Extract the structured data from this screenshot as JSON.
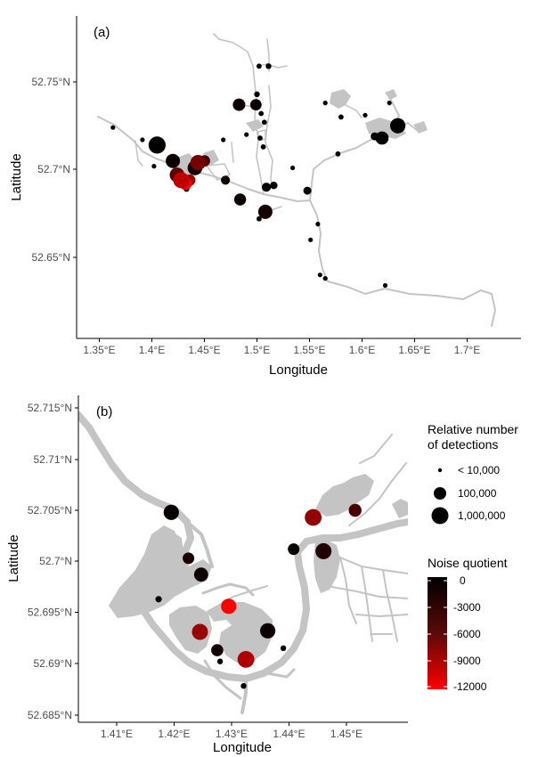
{
  "panel_a": {
    "label": "(a)",
    "xlabel": "Longitude",
    "ylabel": "Latitude",
    "xticks": [
      "1.35°E",
      "1.4°E",
      "1.45°E",
      "1.5°E",
      "1.55°E",
      "1.6°E",
      "1.65°E",
      "1.7°E"
    ],
    "yticks": [
      "52.65°N",
      "52.7°N",
      "52.75°N"
    ]
  },
  "panel_b": {
    "label": "(b)",
    "xlabel": "Longitude",
    "ylabel": "Latitude",
    "xticks": [
      "1.41°E",
      "1.42°E",
      "1.43°E",
      "1.44°E",
      "1.45°E"
    ],
    "yticks": [
      "52.685°N",
      "52.69°N",
      "52.695°N",
      "52.7°N",
      "52.705°N",
      "52.71°N",
      "52.715°N"
    ]
  },
  "legend": {
    "size_title_line1": "Relative number",
    "size_title_line2": "of detections",
    "size_items": [
      "< 10,000",
      "100,000",
      "1,000,000"
    ],
    "color_title": "Noise quotient",
    "color_ticks": [
      "0",
      "-3000",
      "-6000",
      "-9000",
      "-12000"
    ],
    "color_low": "#ff0000",
    "color_high": "#000000"
  },
  "colors": {
    "river": "#c4c4c4",
    "axis": "#000000",
    "tick_text": "#4d4d4d"
  },
  "chart_data": [
    {
      "type": "scatter",
      "panel": "a",
      "title": "",
      "xlabel": "Longitude",
      "ylabel": "Latitude",
      "xlim": [
        1.34,
        1.72
      ],
      "ylim": [
        52.615,
        52.785
      ],
      "size_encoding": "Relative number of detections",
      "color_encoding": "Noise quotient",
      "points": [
        {
          "lon": 1.405,
          "lat": 52.714,
          "size": 3,
          "nq": -200
        },
        {
          "lon": 1.42,
          "lat": 52.705,
          "size": 2.5,
          "nq": -500
        },
        {
          "lon": 1.424,
          "lat": 52.697,
          "size": 2.6,
          "nq": -4500
        },
        {
          "lon": 1.428,
          "lat": 52.694,
          "size": 2.8,
          "nq": -9000
        },
        {
          "lon": 1.432,
          "lat": 52.692,
          "size": 2.2,
          "nq": -11500
        },
        {
          "lon": 1.436,
          "lat": 52.694,
          "size": 2.0,
          "nq": -7500
        },
        {
          "lon": 1.441,
          "lat": 52.701,
          "size": 2.6,
          "nq": -800
        },
        {
          "lon": 1.444,
          "lat": 52.704,
          "size": 2.7,
          "nq": -5500
        },
        {
          "lon": 1.45,
          "lat": 52.705,
          "size": 2.0,
          "nq": -3500
        },
        {
          "lon": 1.433,
          "lat": 52.689,
          "size": 1.0,
          "nq": -200
        },
        {
          "lon": 1.402,
          "lat": 52.702,
          "size": 0.8,
          "nq": 0
        },
        {
          "lon": 1.391,
          "lat": 52.717,
          "size": 0.8,
          "nq": 0
        },
        {
          "lon": 1.363,
          "lat": 52.724,
          "size": 0.8,
          "nq": 0
        },
        {
          "lon": 1.47,
          "lat": 52.694,
          "size": 1.6,
          "nq": -800
        },
        {
          "lon": 1.484,
          "lat": 52.683,
          "size": 2.1,
          "nq": -500
        },
        {
          "lon": 1.508,
          "lat": 52.676,
          "size": 2.5,
          "nq": -1000
        },
        {
          "lon": 1.502,
          "lat": 52.672,
          "size": 0.9,
          "nq": 0
        },
        {
          "lon": 1.509,
          "lat": 52.69,
          "size": 1.6,
          "nq": -300
        },
        {
          "lon": 1.516,
          "lat": 52.691,
          "size": 1.3,
          "nq": -100
        },
        {
          "lon": 1.483,
          "lat": 52.737,
          "size": 2.2,
          "nq": -600
        },
        {
          "lon": 1.499,
          "lat": 52.737,
          "size": 2.0,
          "nq": -500
        },
        {
          "lon": 1.5,
          "lat": 52.743,
          "size": 1.0,
          "nq": -200
        },
        {
          "lon": 1.504,
          "lat": 52.732,
          "size": 0.9,
          "nq": 0
        },
        {
          "lon": 1.507,
          "lat": 52.727,
          "size": 0.9,
          "nq": 0
        },
        {
          "lon": 1.503,
          "lat": 52.718,
          "size": 0.9,
          "nq": 0
        },
        {
          "lon": 1.506,
          "lat": 52.713,
          "size": 0.9,
          "nq": 0
        },
        {
          "lon": 1.502,
          "lat": 52.759,
          "size": 0.9,
          "nq": 0
        },
        {
          "lon": 1.511,
          "lat": 52.759,
          "size": 1.0,
          "nq": 0
        },
        {
          "lon": 1.468,
          "lat": 52.717,
          "size": 0.8,
          "nq": 0
        },
        {
          "lon": 1.49,
          "lat": 52.72,
          "size": 0.8,
          "nq": 0
        },
        {
          "lon": 1.534,
          "lat": 52.701,
          "size": 0.8,
          "nq": 0
        },
        {
          "lon": 1.548,
          "lat": 52.688,
          "size": 1.4,
          "nq": -200
        },
        {
          "lon": 1.558,
          "lat": 52.669,
          "size": 0.8,
          "nq": 0
        },
        {
          "lon": 1.551,
          "lat": 52.66,
          "size": 0.8,
          "nq": 0
        },
        {
          "lon": 1.56,
          "lat": 52.64,
          "size": 0.8,
          "nq": 0
        },
        {
          "lon": 1.565,
          "lat": 52.638,
          "size": 0.8,
          "nq": 0
        },
        {
          "lon": 1.58,
          "lat": 52.73,
          "size": 0.9,
          "nq": 0
        },
        {
          "lon": 1.565,
          "lat": 52.738,
          "size": 0.8,
          "nq": 0
        },
        {
          "lon": 1.577,
          "lat": 52.709,
          "size": 0.9,
          "nq": 0
        },
        {
          "lon": 1.603,
          "lat": 52.731,
          "size": 0.8,
          "nq": 0
        },
        {
          "lon": 1.612,
          "lat": 52.719,
          "size": 1.4,
          "nq": -100
        },
        {
          "lon": 1.619,
          "lat": 52.718,
          "size": 2.3,
          "nq": -100
        },
        {
          "lon": 1.634,
          "lat": 52.725,
          "size": 2.7,
          "nq": -100
        },
        {
          "lon": 1.626,
          "lat": 52.738,
          "size": 0.8,
          "nq": 0
        },
        {
          "lon": 1.622,
          "lat": 52.634,
          "size": 0.8,
          "nq": 0
        }
      ]
    },
    {
      "type": "scatter",
      "panel": "b",
      "title": "",
      "xlabel": "Longitude",
      "ylabel": "Latitude",
      "xlim": [
        1.405,
        1.458
      ],
      "ylim": [
        52.6845,
        52.7155
      ],
      "size_encoding": "Relative number of detections",
      "color_encoding": "Noise quotient",
      "points": [
        {
          "lon": 1.4195,
          "lat": 52.7048,
          "size": 2.4,
          "nq": -300
        },
        {
          "lon": 1.4225,
          "lat": 52.7003,
          "size": 1.8,
          "nq": -1200
        },
        {
          "lon": 1.4247,
          "lat": 52.6987,
          "size": 2.2,
          "nq": -600
        },
        {
          "lon": 1.4173,
          "lat": 52.6963,
          "size": 1.0,
          "nq": 0
        },
        {
          "lon": 1.4295,
          "lat": 52.6956,
          "size": 2.4,
          "nq": -12000
        },
        {
          "lon": 1.4245,
          "lat": 52.6931,
          "size": 2.5,
          "nq": -7200
        },
        {
          "lon": 1.4275,
          "lat": 52.6913,
          "size": 1.9,
          "nq": -1000
        },
        {
          "lon": 1.428,
          "lat": 52.6902,
          "size": 0.9,
          "nq": 0
        },
        {
          "lon": 1.4325,
          "lat": 52.6904,
          "size": 2.6,
          "nq": -8200
        },
        {
          "lon": 1.4363,
          "lat": 52.6932,
          "size": 2.4,
          "nq": -600
        },
        {
          "lon": 1.439,
          "lat": 52.6915,
          "size": 0.9,
          "nq": 0
        },
        {
          "lon": 1.4321,
          "lat": 52.6878,
          "size": 0.9,
          "nq": 0
        },
        {
          "lon": 1.4408,
          "lat": 52.7012,
          "size": 1.8,
          "nq": -200
        },
        {
          "lon": 1.446,
          "lat": 52.701,
          "size": 2.5,
          "nq": -1500
        },
        {
          "lon": 1.4442,
          "lat": 52.7043,
          "size": 2.6,
          "nq": -7000
        },
        {
          "lon": 1.4515,
          "lat": 52.705,
          "size": 2.0,
          "nq": -3500
        }
      ]
    }
  ]
}
